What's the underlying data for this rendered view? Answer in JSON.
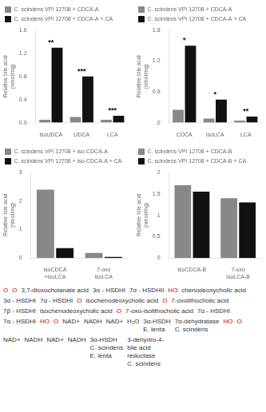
{
  "chart_data": [
    {
      "type": "bar",
      "categories": [
        "isoUDCA",
        "UDCA",
        "LCA"
      ],
      "series": [
        {
          "name": "C. scindens VPI 12708 + CDCA-A",
          "color": "#888888",
          "values": [
            0.05,
            0.1,
            0.05
          ]
        },
        {
          "name": "C. scindens VPI 12708 + CDCA-A + CA",
          "color": "#111111",
          "values": [
            1.3,
            0.8,
            0.12
          ]
        }
      ],
      "ylabel": "Relative bile acid\n(nmol/mg)",
      "ylim": [
        0,
        1.6
      ],
      "yticks": [
        {
          "value": 0,
          "label": "0.0"
        },
        0.4,
        0.8,
        1.2,
        1.6
      ],
      "annotations": [
        "**",
        "***",
        "***"
      ],
      "grid": false,
      "legend": "upper left"
    },
    {
      "type": "bar",
      "categories": [
        "CDCA",
        "isoLCA",
        "LCA"
      ],
      "series": [
        {
          "name": "C. scindens VPI 12708 + CDCA-A",
          "color": "#888888",
          "values": [
            0.25,
            0.08,
            0.04
          ]
        },
        {
          "name": "C. scindens VPI 12708 + CDCA-A + CA",
          "color": "#111111",
          "values": [
            1.5,
            0.45,
            0.12
          ]
        }
      ],
      "ylabel": "Relative bile acid\n(nmol/mg)",
      "ylim": [
        0,
        1.8
      ],
      "yticks": [
        0,
        0.6,
        1.2,
        1.8
      ],
      "annotations": [
        "*",
        "*",
        "**"
      ],
      "grid": false,
      "legend": "upper left"
    },
    {
      "type": "bar",
      "categories": [
        "isoCDCA\n+isoLCA",
        "7-oxo\nisoLCA"
      ],
      "series": [
        {
          "name": "C. scindens VPI 12708 + iso-CDCA-A",
          "color": "#888888",
          "values": [
            2.4,
            0.18
          ]
        },
        {
          "name": "C. scindens VPI 12708 + iso-CDCA-A + CA",
          "color": "#111111",
          "values": [
            0.35,
            0.04
          ]
        }
      ],
      "ylabel": "Relative bile acid\n(nmol/mg)",
      "ylim": [
        0,
        3.0
      ],
      "yticks": [
        0,
        1,
        2,
        3
      ],
      "grid": false,
      "legend": "upper left"
    },
    {
      "type": "bar",
      "categories": [
        "isoCDCA-B",
        "7-oxo\nisoLCA-B"
      ],
      "series": [
        {
          "name": "C. scindens VPI 12708 + CDCA-B",
          "color": "#888888",
          "values": [
            1.7,
            1.4
          ]
        },
        {
          "name": "C. scindens VPI 12708 + CDCA-B + CA",
          "color": "#111111",
          "values": [
            1.55,
            1.3
          ]
        }
      ],
      "ylabel": "Relative bile acid\n(nmol/mg)",
      "ylim": [
        0,
        2.0
      ],
      "yticks": [
        0,
        0.5,
        1,
        1.5,
        2
      ],
      "grid": false,
      "legend": "upper left"
    },
    {
      "type": "diagram",
      "annotations": [
        {
          "text": "O",
          "color": "#cc0000"
        },
        {
          "text": "O",
          "color": "#cc0000"
        },
        "3,7-dioxocholanate acid",
        "3α - HSDHI",
        "7α - HSDHII",
        {
          "text": "HO",
          "color": "#cc0000"
        },
        "chenodeoxycholic acid",
        "3α - HSDHI",
        "7α - HSDHI",
        {
          "text": "O",
          "color": "#cc0000"
        },
        "isochenodeoxycholic acid",
        {
          "text": "O",
          "color": "#cc0000"
        },
        "7-oxolithocholic acid",
        "7β - HSDHI",
        "isochenodeoxycholic acid",
        {
          "text": "O",
          "color": "#cc0000"
        },
        "7-oxo-isolithocholic acid",
        "7α - HSDHI",
        "7α - HSDHI",
        {
          "text": "HO",
          "color": "#cc0000"
        },
        {
          "text": "O",
          "color": "#cc0000"
        },
        "NAD+",
        "NADH",
        "NAD+",
        "H₂O",
        "3α-HSDH\nE. lenta",
        "7α-dehydratase\nC. scindens",
        {
          "text": "HO",
          "color": "#cc0000"
        },
        {
          "text": "O",
          "color": "#cc0000"
        },
        "NAD+",
        "NADH",
        "NAD+",
        "NADH",
        "3α-HSDH\nC. scindens\nE. lenta",
        "3-dehydro-4-\nbile acid\nreductase\nC. scindens"
      ]
    }
  ]
}
